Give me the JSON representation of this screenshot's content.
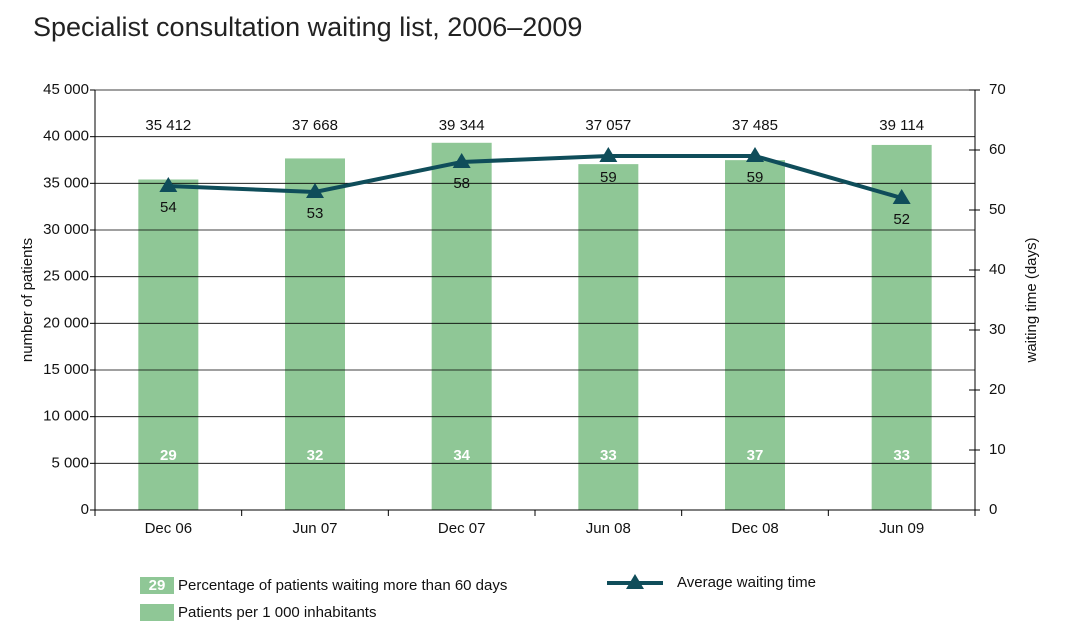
{
  "chart_data": {
    "type": "bar",
    "title": "Specialist consultation waiting list, 2006–2009",
    "y_label": "number of patients",
    "y2_label": "waiting time (days)",
    "categories": [
      "Dec 06",
      "Jun 07",
      "Dec 07",
      "Jun 08",
      "Dec 08",
      "Jun 09"
    ],
    "ylim": [
      0,
      45000
    ],
    "yticks": [
      0,
      {
        "value": 5000,
        "label": "5 000"
      },
      {
        "value": 10000,
        "label": "10 000"
      },
      {
        "value": 15000,
        "label": "15 000"
      },
      {
        "value": 20000,
        "label": "20 000"
      },
      {
        "value": 25000,
        "label": "25 000"
      },
      {
        "value": 30000,
        "label": "30 000"
      },
      {
        "value": 35000,
        "label": "35 000"
      },
      {
        "value": 40000,
        "label": "40 000"
      },
      {
        "value": 45000,
        "label": "45 000"
      }
    ],
    "y2lim": [
      0,
      70
    ],
    "y2ticks": [
      0,
      10,
      20,
      30,
      40,
      50,
      60,
      70
    ],
    "grid": true,
    "series": [
      {
        "name": "Patients per 1 000 inhabitants",
        "color": "#8fc796",
        "values": [
          35412,
          37668,
          39344,
          37057,
          37485,
          39114
        ],
        "value_labels": [
          "35 412",
          "37 668",
          "39 344",
          "37 057",
          "37 485",
          "39 114"
        ]
      },
      {
        "name": "Percentage of patients waiting more than 60 days",
        "color": "#ffffff",
        "values": [
          29,
          32,
          34,
          33,
          37,
          33
        ]
      },
      {
        "name": "Average waiting time",
        "type": "line",
        "axis": "y2",
        "color": "#0f4d5a",
        "values": [
          54,
          53,
          58,
          59,
          59,
          52
        ]
      }
    ]
  }
}
